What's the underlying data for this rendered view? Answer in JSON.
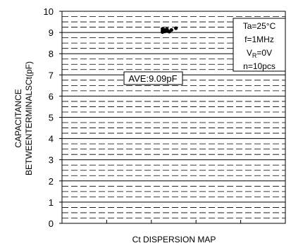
{
  "chart_data": {
    "type": "scatter",
    "title": "",
    "xlabel": "Ct DISPERSION MAP",
    "ylabel_lines": [
      "CAPACITANCE",
      "BETWEENTERMINALSCt(pF)"
    ],
    "ylim": [
      0,
      10
    ],
    "y_ticks": [
      "0",
      "1",
      "2",
      "3",
      "4",
      "5",
      "6",
      "7",
      "8",
      "9",
      "10"
    ],
    "x_ticks_count": 5,
    "grid": true,
    "minor_grid_dashed": true,
    "points": [
      {
        "x": 0.45,
        "y": 9.08
      },
      {
        "x": 0.45,
        "y": 9.17
      },
      {
        "x": 0.45,
        "y": 9.02
      },
      {
        "x": 0.46,
        "y": 9.12
      },
      {
        "x": 0.46,
        "y": 9.05
      },
      {
        "x": 0.47,
        "y": 9.15
      },
      {
        "x": 0.47,
        "y": 9.09
      },
      {
        "x": 0.48,
        "y": 9.04
      },
      {
        "x": 0.49,
        "y": 9.12
      },
      {
        "x": 0.51,
        "y": 9.2
      }
    ],
    "average_label": "AVE:9.09pF",
    "conditions": {
      "ta": "Ta=25°C",
      "f": "f=1MHz",
      "vr_prefix": "V",
      "vr_sub": "R",
      "vr_suffix": "=0V",
      "n": "n=10pcs"
    },
    "colors": {
      "line": "#000000",
      "background": "#ffffff"
    }
  }
}
